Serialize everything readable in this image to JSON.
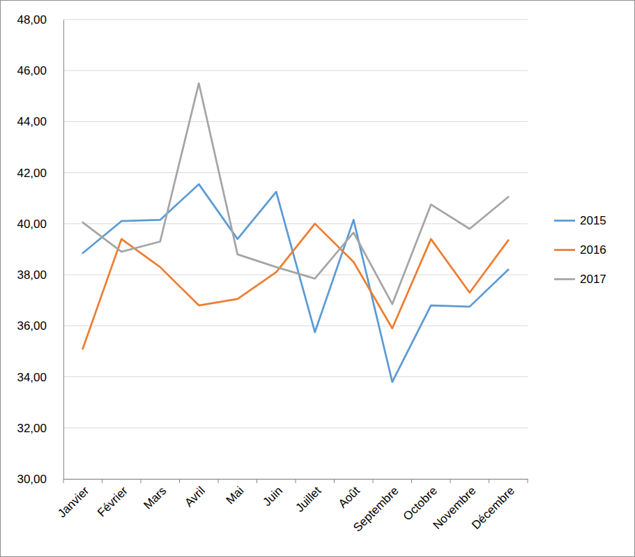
{
  "chart_data": {
    "type": "line",
    "categories": [
      "Janvier",
      "Février",
      "Mars",
      "Avril",
      "Mai",
      "Juin",
      "Juillet",
      "Août",
      "Septembre",
      "Octobre",
      "Novembre",
      "Décembre"
    ],
    "series": [
      {
        "name": "2015",
        "color": "#5B9BD5",
        "values": [
          38.85,
          40.1,
          40.15,
          41.55,
          39.4,
          41.25,
          35.75,
          40.15,
          33.8,
          36.8,
          36.75,
          38.2
        ]
      },
      {
        "name": "2016",
        "color": "#ED7D31",
        "values": [
          35.1,
          39.4,
          38.3,
          36.8,
          37.05,
          38.1,
          40.0,
          38.5,
          35.9,
          39.4,
          37.3,
          39.35
        ]
      },
      {
        "name": "2017",
        "color": "#A5A5A5",
        "values": [
          40.05,
          38.9,
          39.3,
          45.5,
          38.8,
          38.3,
          37.85,
          39.65,
          36.85,
          40.75,
          39.8,
          41.05
        ]
      }
    ],
    "ylim": [
      30,
      48
    ],
    "yticks": [
      {
        "value": 30,
        "label": "30,00"
      },
      {
        "value": 32,
        "label": "32,00"
      },
      {
        "value": 34,
        "label": "34,00"
      },
      {
        "value": 36,
        "label": "36,00"
      },
      {
        "value": 38,
        "label": "38,00"
      },
      {
        "value": 40,
        "label": "40,00"
      },
      {
        "value": 42,
        "label": "42,00"
      },
      {
        "value": 44,
        "label": "44,00"
      },
      {
        "value": 46,
        "label": "46,00"
      },
      {
        "value": 48,
        "label": "48,00"
      }
    ],
    "grid": true,
    "legend": "right"
  }
}
